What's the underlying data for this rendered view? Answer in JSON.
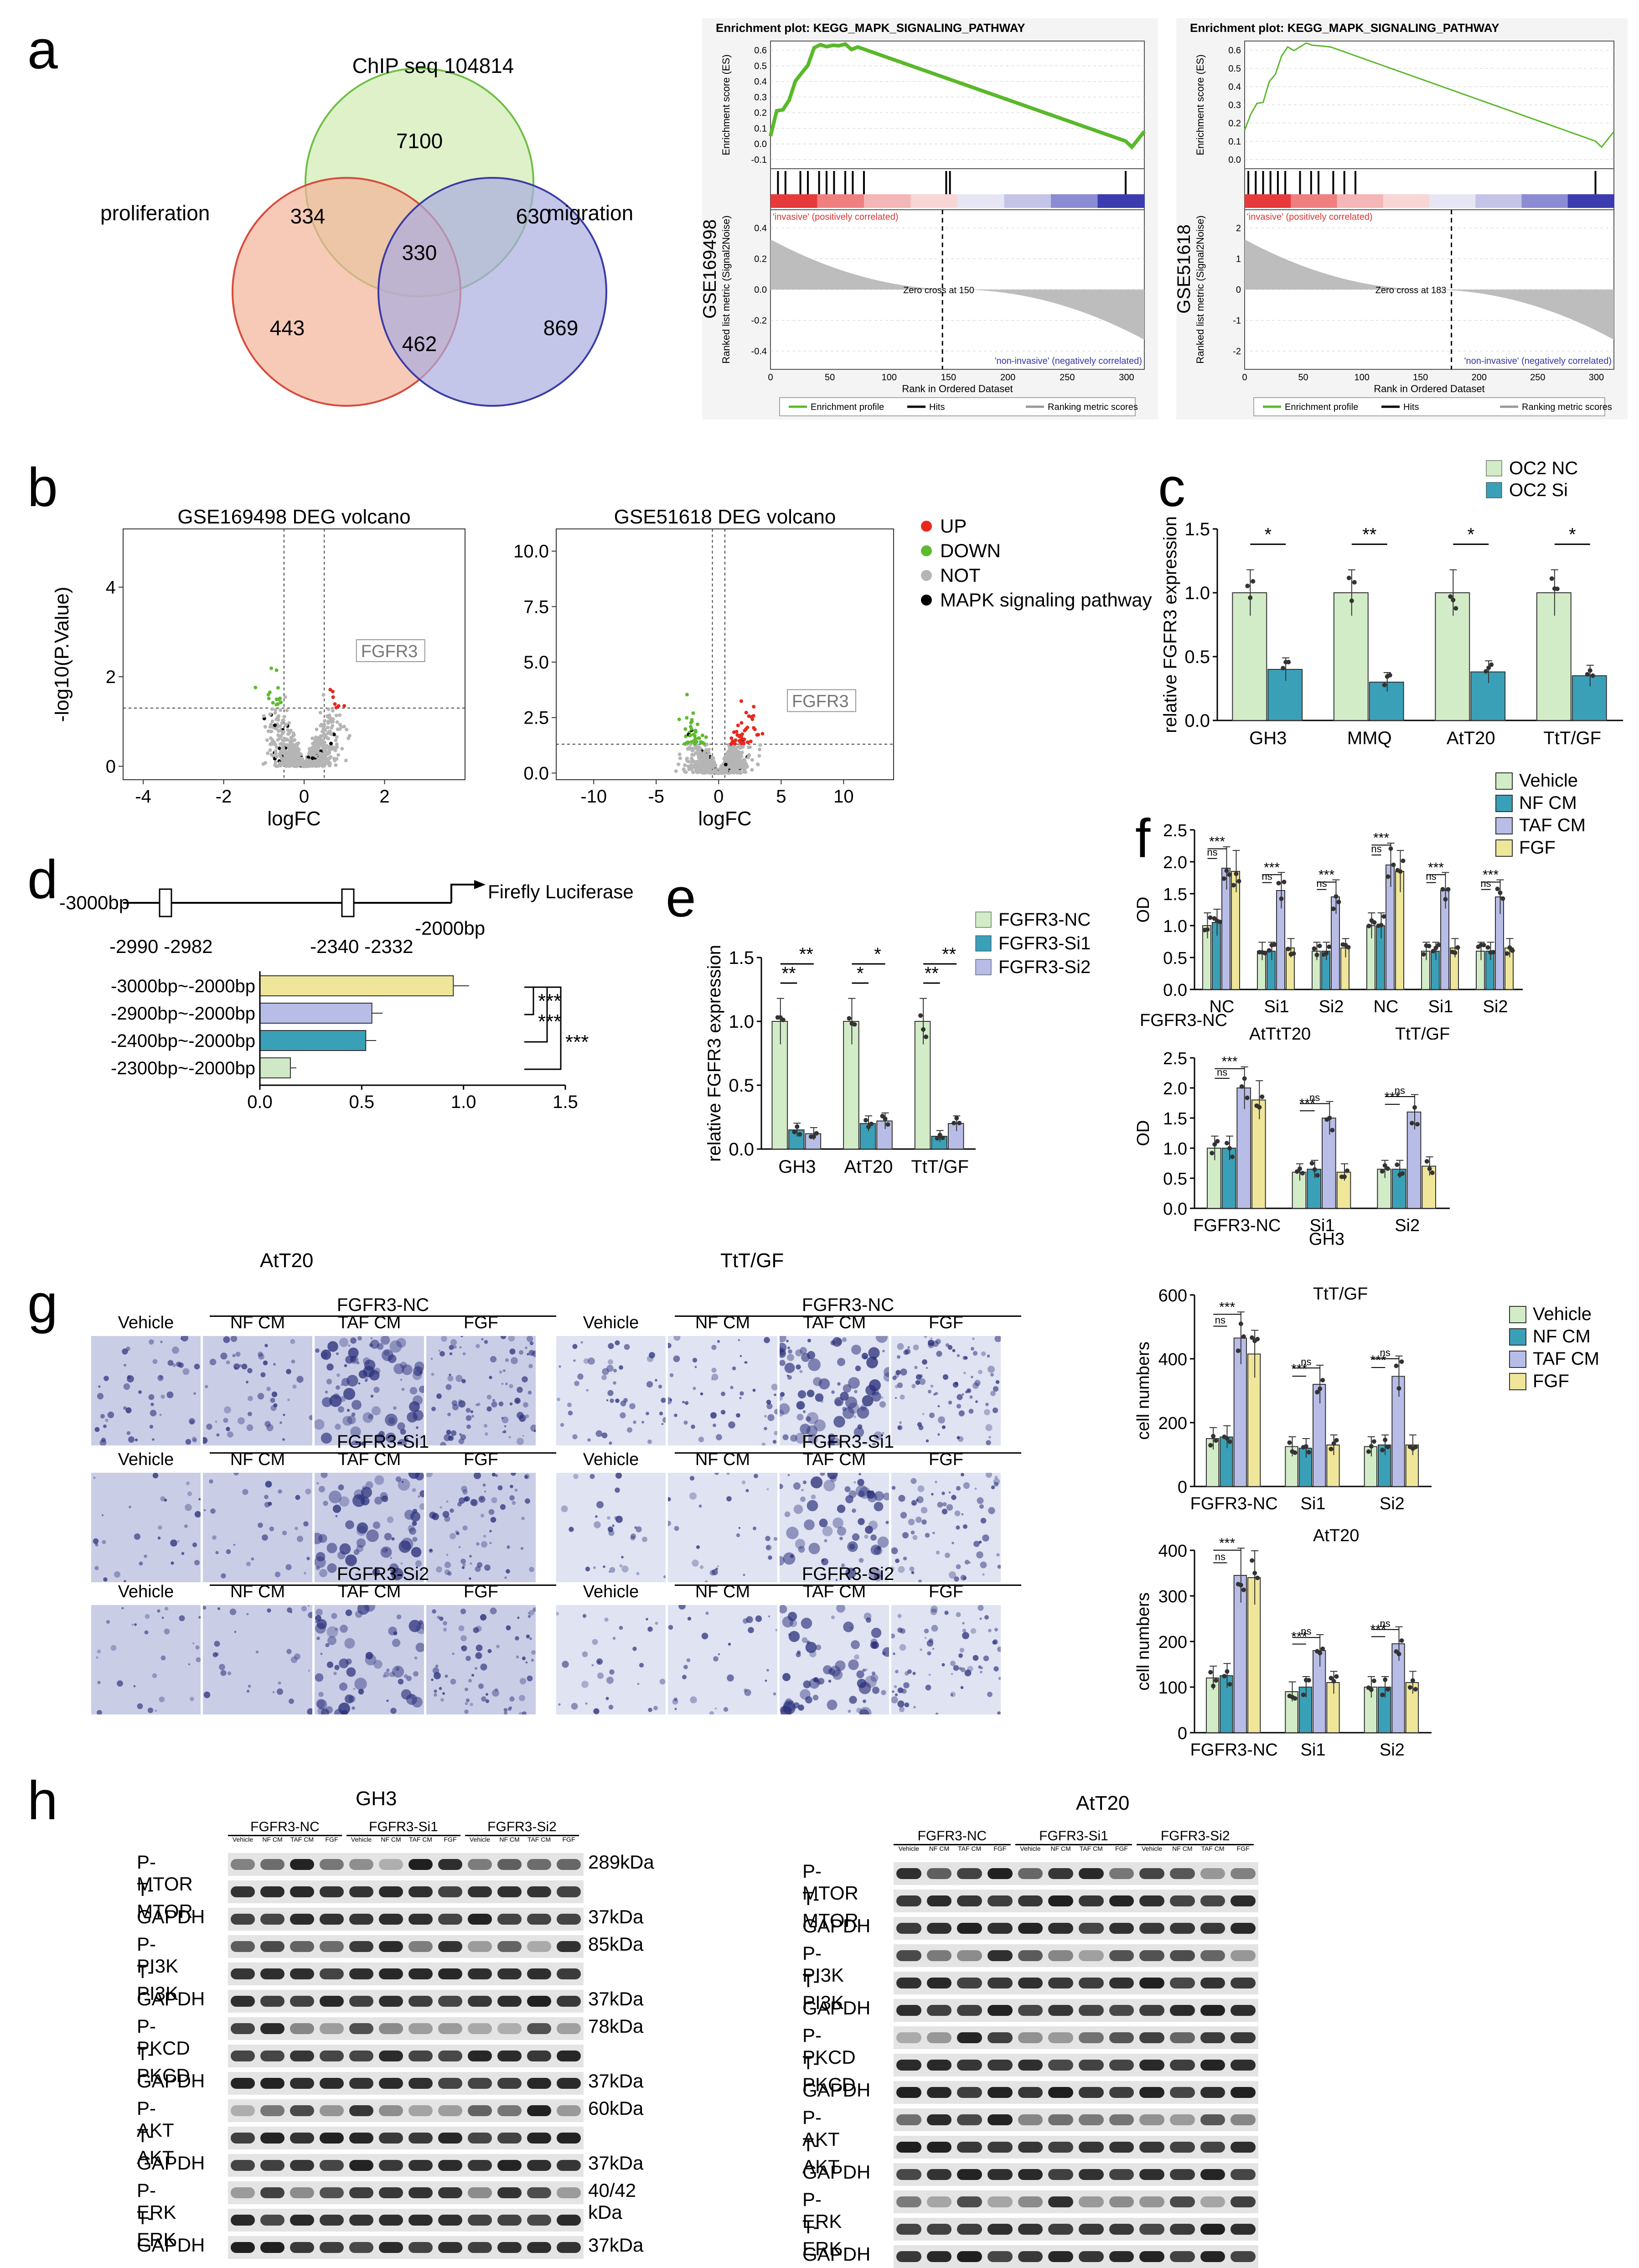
{
  "panels": {
    "a": "a",
    "b": "b",
    "c": "c",
    "d": "d",
    "e": "e",
    "f": "f",
    "g": "g",
    "h": "h"
  },
  "venn": {
    "title_top": "ChIP seq 104814",
    "label_left": "proliferation",
    "label_right": "migration",
    "n_top": "7100",
    "n_top_left": "334",
    "n_top_right": "630",
    "n_center": "330",
    "n_left": "443",
    "n_right": "869",
    "n_bottom": "462",
    "colors": {
      "top": "#d8efc0",
      "left": "#f4b49a",
      "right": "#a9acdf"
    }
  },
  "gsea": [
    {
      "title": "Enrichment plot: KEGG_MAPK_SIGNALING_PATHWAY",
      "dataset": "GSE169498",
      "es_label": "Enrichment score (ES)",
      "rank_label": "Ranked list metric (Signal2Noise)",
      "xlabel": "Rank in Ordered Dataset",
      "pos_label": "'invasive' (positively correlated)",
      "neg_label": "'non-invasive' (negatively correlated)",
      "zero_cross": "Zero cross at 150",
      "legend": [
        "Enrichment profile",
        "Hits",
        "Ranking metric scores"
      ],
      "es_ticks": [
        "0.6",
        "0.5",
        "0.4",
        "0.3",
        "0.2",
        "0.1",
        "0.0",
        "-0.1"
      ],
      "rank_ticks": [
        "0.4",
        "0.2",
        "0.0",
        "-0.2",
        "-0.4"
      ],
      "x_ticks": [
        "0",
        "50",
        "100",
        "150",
        "200",
        "250",
        "300"
      ]
    },
    {
      "title": "Enrichment plot: KEGG_MAPK_SIGNALING_PATHWAY",
      "dataset": "GSE51618",
      "es_label": "Enrichment score (ES)",
      "rank_label": "Ranked list metric (Signal2Noise)",
      "xlabel": "Rank in Ordered Dataset",
      "pos_label": "'invasive' (positively correlated)",
      "neg_label": "'non-invasive' (negatively correlated)",
      "zero_cross": "Zero cross at 183",
      "legend": [
        "Enrichment profile",
        "Hits",
        "Ranking metric scores"
      ],
      "es_ticks": [
        "0.6",
        "0.5",
        "0.4",
        "0.3",
        "0.2",
        "0.1",
        "0.0"
      ],
      "rank_ticks": [
        "2",
        "1",
        "0",
        "-1",
        "-2"
      ],
      "x_ticks": [
        "0",
        "50",
        "100",
        "150",
        "200",
        "250",
        "300"
      ]
    }
  ],
  "volcano": {
    "left": {
      "title": "GSE169498 DEG volcano",
      "ylabel": "-log10(P.Value)",
      "xlabel": "logFC",
      "gene": "FGFR3",
      "x_ticks": [
        "-4",
        "-2",
        "0",
        "2"
      ],
      "y_ticks": [
        "4",
        "2",
        "0"
      ]
    },
    "right": {
      "title": "GSE51618 DEG volcano",
      "xlabel": "logFC",
      "gene": "FGFR3",
      "x_ticks": [
        "-10",
        "-5",
        "0",
        "5",
        "10"
      ],
      "y_ticks": [
        "10.0",
        "7.5",
        "5.0",
        "2.5",
        "0.0"
      ]
    },
    "legend": [
      {
        "label": "UP",
        "color": "#e8281e"
      },
      {
        "label": "DOWN",
        "color": "#5fba2f"
      },
      {
        "label": "NOT",
        "color": "#b5b5b5"
      },
      {
        "label": "MAPK signaling pathway",
        "color": "#000000"
      }
    ]
  },
  "chart_data": [
    {
      "id": "c",
      "type": "bar",
      "title": "",
      "ylabel": "relative FGFR3 expression",
      "categories": [
        "GH3",
        "MMQ",
        "AtT20",
        "TtT/GF"
      ],
      "series": [
        {
          "name": "OC2 NC",
          "values": [
            1.0,
            1.0,
            1.0,
            1.0
          ],
          "color": "#d3ecc8"
        },
        {
          "name": "OC2 Si",
          "values": [
            0.4,
            0.3,
            0.38,
            0.35
          ],
          "color": "#3aa0b8"
        }
      ],
      "ylim": [
        0,
        1.5
      ],
      "y_ticks": [
        "0.0",
        "0.5",
        "1.0",
        "1.5"
      ],
      "sig": [
        "*",
        "**",
        "*",
        "*"
      ]
    },
    {
      "id": "d",
      "type": "bar",
      "orientation": "horizontal",
      "title": "",
      "categories": [
        "-3000bp~-2000bp",
        "-2900bp~-2000bp",
        "-2400bp~-2000bp",
        "-2300bp~-2000bp"
      ],
      "values": [
        0.95,
        0.55,
        0.52,
        0.15
      ],
      "colors": [
        "#efe69a",
        "#b8bde8",
        "#3aa0b8",
        "#cfe8c6"
      ],
      "xlim": [
        0,
        1.5
      ],
      "x_ticks": [
        "0.0",
        "0.5",
        "1.0",
        "1.5"
      ],
      "sig": [
        "***",
        "***",
        "***"
      ],
      "construct": {
        "start": "-3000bp",
        "end": "-2000bp",
        "reporter": "Firefly Luciferase",
        "site1": "-2990 -2982",
        "site2": "-2340 -2332"
      }
    },
    {
      "id": "e",
      "type": "bar",
      "ylabel": "relative FGFR3 expression",
      "categories": [
        "GH3",
        "AtT20",
        "TtT/GF"
      ],
      "series": [
        {
          "name": "FGFR3-NC",
          "values": [
            1.0,
            1.0,
            1.0
          ],
          "color": "#d3ecc8"
        },
        {
          "name": "FGFR3-Si1",
          "values": [
            0.15,
            0.2,
            0.1
          ],
          "color": "#3aa0b8"
        },
        {
          "name": "FGFR3-Si2",
          "values": [
            0.12,
            0.22,
            0.2
          ],
          "color": "#b8bde8"
        }
      ],
      "ylim": [
        0,
        1.5
      ],
      "y_ticks": [
        "0.0",
        "0.5",
        "1.0",
        "1.5"
      ],
      "sig_upper": [
        "**",
        "*",
        "**"
      ],
      "sig_lower": [
        "**",
        "*",
        "**"
      ]
    },
    {
      "id": "f1",
      "type": "bar",
      "ylabel": "OD",
      "categories": [
        "NC",
        "Si1",
        "Si2",
        "NC",
        "Si1",
        "Si2"
      ],
      "groups": [
        "AtT20",
        "TtT/GF"
      ],
      "series": [
        {
          "name": "Vehicle",
          "values": [
            1.0,
            0.6,
            0.6,
            1.0,
            0.6,
            0.6
          ]
        },
        {
          "name": "NF CM",
          "values": [
            1.05,
            0.6,
            0.6,
            1.0,
            0.6,
            0.6
          ]
        },
        {
          "name": "TAF CM",
          "values": [
            1.9,
            1.55,
            1.45,
            1.95,
            1.55,
            1.45
          ]
        },
        {
          "name": "FGF",
          "values": [
            1.85,
            0.65,
            0.65,
            1.85,
            0.65,
            0.65
          ]
        }
      ],
      "ylim": [
        0,
        2.5
      ],
      "y_ticks": [
        "0.0",
        "0.5",
        "1.0",
        "1.5",
        "2.0",
        "2.5"
      ],
      "sig": [
        "ns",
        "***",
        "ns",
        "***",
        "ns",
        "***",
        "ns",
        "***",
        "ns",
        "***",
        "ns",
        "***"
      ],
      "row_label": "FGFR3-NC",
      "group_label": "AtTtT20"
    },
    {
      "id": "f2",
      "type": "bar",
      "ylabel": "OD",
      "title": "GH3",
      "categories": [
        "FGFR3-NC",
        "Si1",
        "Si2"
      ],
      "series": [
        {
          "name": "Vehicle",
          "values": [
            1.0,
            0.6,
            0.65
          ]
        },
        {
          "name": "NF CM",
          "values": [
            1.0,
            0.65,
            0.65
          ]
        },
        {
          "name": "TAF CM",
          "values": [
            2.0,
            1.5,
            1.6
          ]
        },
        {
          "name": "FGF",
          "values": [
            1.8,
            0.6,
            0.7
          ]
        }
      ],
      "ylim": [
        0,
        2.5
      ],
      "y_ticks": [
        "0.0",
        "0.5",
        "1.0",
        "1.5",
        "2.0",
        "2.5"
      ],
      "sig": [
        "ns",
        "***",
        "***",
        "ns",
        "***",
        "ns",
        "***",
        "ns"
      ]
    },
    {
      "id": "g1",
      "type": "bar",
      "ylabel": "cell numbers",
      "title": "TtT/GF",
      "categories": [
        "FGFR3-NC",
        "Si1",
        "Si2"
      ],
      "series": [
        {
          "name": "Vehicle",
          "values": [
            150,
            125,
            125
          ]
        },
        {
          "name": "NF CM",
          "values": [
            155,
            120,
            130
          ]
        },
        {
          "name": "TAF CM",
          "values": [
            465,
            320,
            345
          ]
        },
        {
          "name": "FGF",
          "values": [
            415,
            130,
            130
          ]
        }
      ],
      "ylim": [
        0,
        600
      ],
      "y_ticks": [
        "0",
        "200",
        "400",
        "600"
      ],
      "sig": [
        "ns",
        "***",
        "***",
        "ns",
        "***",
        "ns",
        "***",
        "ns"
      ]
    },
    {
      "id": "g2",
      "type": "bar",
      "ylabel": "cell numbers",
      "title": "AtT20",
      "categories": [
        "FGFR3-NC",
        "Si1",
        "Si2"
      ],
      "series": [
        {
          "name": "Vehicle",
          "values": [
            120,
            90,
            100
          ]
        },
        {
          "name": "NF CM",
          "values": [
            125,
            100,
            100
          ]
        },
        {
          "name": "TAF CM",
          "values": [
            345,
            180,
            195
          ]
        },
        {
          "name": "FGF",
          "values": [
            340,
            110,
            110
          ]
        }
      ],
      "ylim": [
        0,
        400
      ],
      "y_ticks": [
        "0",
        "100",
        "200",
        "300",
        "400"
      ],
      "sig": [
        "ns",
        "***",
        "***",
        "ns",
        "***",
        "ns",
        "***",
        "ns"
      ]
    }
  ],
  "f_legend": [
    {
      "label": "Vehicle",
      "color": "#d3ecc8"
    },
    {
      "label": "NF CM",
      "color": "#3aa0b8"
    },
    {
      "label": "TAF CM",
      "color": "#b8bde8"
    },
    {
      "label": "FGF",
      "color": "#efe69a"
    }
  ],
  "g_legend": [
    {
      "label": "Vehicle",
      "color": "#d3ecc8"
    },
    {
      "label": "NF CM",
      "color": "#3aa0b8"
    },
    {
      "label": "TAF CM",
      "color": "#b8bde8"
    },
    {
      "label": "FGF",
      "color": "#efe69a"
    }
  ],
  "transwell": {
    "left_title": "AtT20",
    "right_title": "TtT/GF",
    "groups": [
      "FGFR3-NC",
      "FGFR3-Si1",
      "FGFR3-Si2"
    ],
    "conditions": [
      "Vehicle",
      "NF CM",
      "TAF CM",
      "FGF"
    ]
  },
  "western": {
    "left": {
      "cell": "GH3",
      "groups": [
        "FGFR3-NC",
        "FGFR3-Si1",
        "FGFR3-Si2"
      ],
      "lanes": [
        "Vehicle",
        "NF CM",
        "TAF CM",
        "FGF",
        "Vehicle",
        "NF CM",
        "TAF CM",
        "FGF",
        "Vehicle",
        "NF CM",
        "TAF CM",
        "FGF"
      ],
      "rows": [
        "P-MTOR",
        "T-MTOR",
        "GAPDH",
        "P-PI3K",
        "T-PI3K",
        "GAPDH",
        "P-PKCD",
        "T-PKCD",
        "GAPDH",
        "P-AKT",
        "T-AKT",
        "GAPDH",
        "P-ERK",
        "T-ERK",
        "GAPDH"
      ],
      "kda": [
        "289kDa",
        "37kDa",
        "85kDa",
        "37kDa",
        "78kDa",
        "37kDa",
        "60kDa",
        "37kDa",
        "40/42 kDa",
        "37kDa"
      ]
    },
    "right": {
      "cell": "AtT20",
      "groups": [
        "FGFR3-NC",
        "FGFR3-Si1",
        "FGFR3-Si2"
      ],
      "lanes": [
        "Vehicle",
        "NF CM",
        "TAF CM",
        "FGF",
        "Vehicle",
        "NF CM",
        "TAF CM",
        "FGF",
        "Vehicle",
        "NF CM",
        "TAF CM",
        "FGF"
      ],
      "rows": [
        "P-MTOR",
        "T-MTOR",
        "GAPDH",
        "P-PI3K",
        "T-PI3K",
        "GAPDH",
        "P-PKCD",
        "T-PKCD",
        "GAPDH",
        "P-AKT",
        "T-AKT",
        "GAPDH",
        "P-ERK",
        "T-ERK",
        "GAPDH"
      ]
    }
  }
}
